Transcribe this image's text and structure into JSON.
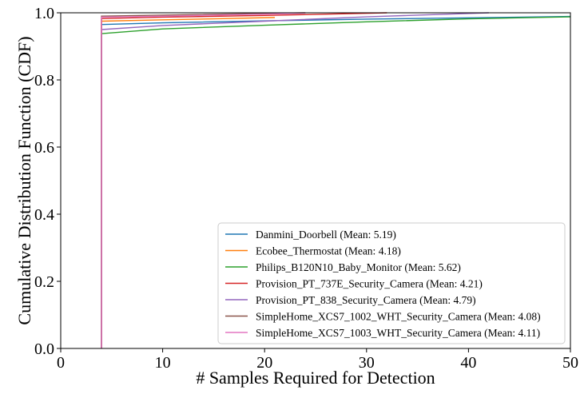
{
  "chart_data": {
    "type": "line",
    "xlabel": "# Samples Required for Detection",
    "ylabel": "Cumulative Distribution Function (CDF)",
    "xlim": [
      0,
      50
    ],
    "ylim": [
      0,
      1.0
    ],
    "xticks": [
      0,
      10,
      20,
      30,
      40,
      50
    ],
    "yticks": [
      0.0,
      0.2,
      0.4,
      0.6,
      0.8,
      1.0
    ],
    "xtick_labels": [
      "0",
      "10",
      "20",
      "30",
      "40",
      "50"
    ],
    "ytick_labels": [
      "0.0",
      "0.2",
      "0.4",
      "0.6",
      "0.8",
      "1.0"
    ],
    "grid": false,
    "legend_position": "lower-right",
    "series": [
      {
        "name": "Danmini_Doorbell",
        "legend_label": "Danmini_Doorbell (Mean: 5.19)",
        "color": "#1f77b4",
        "x": [
          4,
          4,
          10,
          20,
          30,
          40,
          50
        ],
        "y": [
          0.0,
          0.965,
          0.97,
          0.976,
          0.981,
          0.985,
          0.989
        ]
      },
      {
        "name": "Ecobee_Thermostat",
        "legend_label": "Ecobee_Thermostat (Mean: 4.18)",
        "color": "#ff7f0e",
        "x": [
          4,
          4,
          10,
          15,
          21
        ],
        "y": [
          0.0,
          0.975,
          0.979,
          0.982,
          0.986
        ]
      },
      {
        "name": "Philips_B120N10_Baby_Monitor",
        "legend_label": "Philips_B120N10_Baby_Monitor (Mean: 5.62)",
        "color": "#2ca02c",
        "x": [
          4,
          4,
          10,
          20,
          30,
          40,
          50
        ],
        "y": [
          0.0,
          0.938,
          0.952,
          0.963,
          0.973,
          0.982,
          0.988
        ]
      },
      {
        "name": "Provision_PT_737E_Security_Camera",
        "legend_label": "Provision_PT_737E_Security_Camera (Mean: 4.21)",
        "color": "#d62728",
        "x": [
          4,
          4,
          10,
          20,
          32
        ],
        "y": [
          0.0,
          0.983,
          0.987,
          0.992,
          1.0
        ]
      },
      {
        "name": "Provision_PT_838_Security_Camera",
        "legend_label": "Provision_PT_838_Security_Camera (Mean: 4.79)",
        "color": "#9467bd",
        "x": [
          4,
          4,
          10,
          20,
          30,
          42
        ],
        "y": [
          0.0,
          0.95,
          0.962,
          0.975,
          0.988,
          1.0
        ]
      },
      {
        "name": "SimpleHome_XCS7_1002_WHT_Security_Camera",
        "legend_label": "SimpleHome_XCS7_1002_WHT_Security_Camera (Mean: 4.08)",
        "color": "#8c564b",
        "x": [
          4,
          4,
          10,
          24
        ],
        "y": [
          0.0,
          0.99,
          0.993,
          1.0
        ]
      },
      {
        "name": "SimpleHome_XCS7_1003_WHT_Security_Camera",
        "legend_label": "SimpleHome_XCS7_1003_WHT_Security_Camera (Mean: 4.11)",
        "color": "#e377c2",
        "x": [
          4,
          4,
          10,
          20,
          24
        ],
        "y": [
          0.0,
          0.987,
          0.99,
          0.996,
          0.999
        ]
      }
    ]
  }
}
